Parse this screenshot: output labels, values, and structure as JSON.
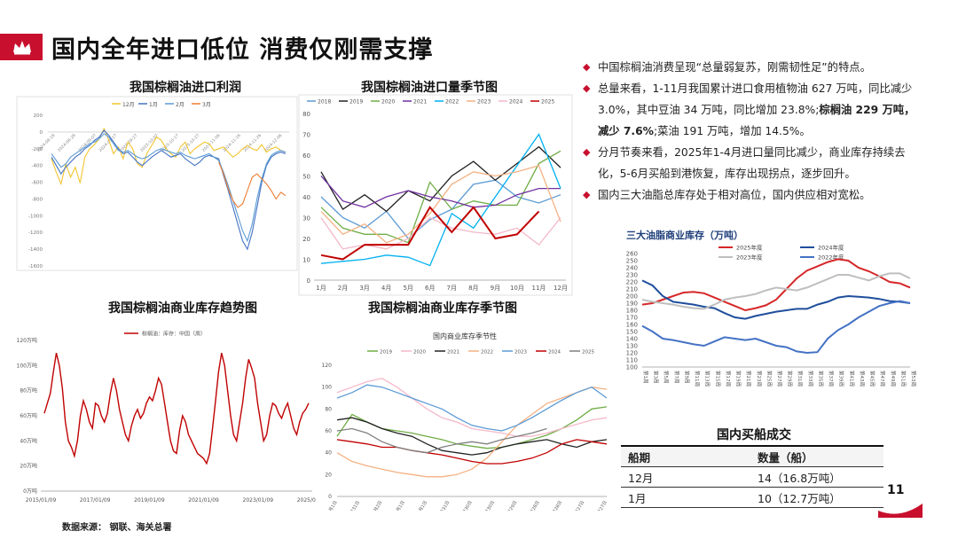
{
  "slide": {
    "title": "国内全年进口低位 消费仅刚需支撑",
    "page_number": "11",
    "source": "数据来源： 钢联、海关总署",
    "brand_color": "#c8102e"
  },
  "bullets": [
    {
      "text": "中国棕榈油消费呈现“总量弱复苏，刚需韧性足”的特点。"
    },
    {
      "text": "总量来看，1-11月我国累计进口食用植物油 627 万吨，同比减少 3.0%，其中豆油 34 万吨，同比增加 23.8%;",
      "bold": "棕榈油 229 万吨，减少 7.6%",
      "tail": ";菜油 191 万吨，增加 14.5%。"
    },
    {
      "text": "分月节奏来看，2025年1-4月进口量同比减少，商业库存持续去化，5-6月买船到港恢复，库存出现拐点，逐步回升。"
    },
    {
      "text": "国内三大油脂总库存处于相对高位，国内供应相对宽松。"
    }
  ],
  "ship_table": {
    "title": "国内买船成交",
    "headers": [
      "船期",
      "数量（船）"
    ],
    "rows": [
      [
        "12月",
        "14（16.8万吨）"
      ],
      [
        "1月",
        "10（12.7万吨）"
      ]
    ]
  },
  "chart_data": [
    {
      "type": "line",
      "title": "我国棕榈油进口利润",
      "legend": [
        "12月",
        "1月",
        "2月",
        "3月"
      ],
      "series_colors": [
        "#f2c530",
        "#4472c4",
        "#5b9bd5",
        "#ed7d31"
      ],
      "y_ticks": [
        "200",
        "0",
        "-200",
        "-400",
        "-600",
        "-800",
        "-1000",
        "-1200",
        "-1400",
        "-1600"
      ],
      "ylim": [
        -1600,
        200
      ],
      "x_labels": [
        "2024-08-18",
        "2024-08-28",
        "2024-09-07",
        "2024-09-17",
        "2024-09-27",
        "2025-10-07",
        "2025-10-17",
        "2025-10-27",
        "2024-11-06",
        "2024-11-16",
        "2024-11-26",
        "2024-12-06"
      ],
      "series": [
        {
          "name": "12月",
          "values": [
            -320,
            -480,
            -620,
            -380,
            -540,
            -420,
            -610,
            -300,
            -200,
            -150,
            -80,
            40,
            -100,
            -260,
            -180,
            -320,
            -120,
            -200,
            -380,
            -420,
            -250,
            -160,
            -60,
            -100,
            -200,
            -260,
            -300,
            -180,
            -120,
            -260,
            -200,
            -160,
            -120,
            -140,
            -220,
            -200,
            -180,
            -240,
            -300,
            -260,
            -200,
            -160,
            -200,
            -220,
            -150,
            -240,
            -200,
            -180,
            -220,
            -240
          ]
        },
        {
          "name": "1月",
          "values": [
            -300,
            -400,
            -500,
            -420,
            -360,
            -300,
            -260,
            -200,
            -160,
            -100,
            -60,
            20,
            -40,
            -120,
            -200,
            -260,
            -240,
            -300,
            -360,
            -400,
            -350,
            -300,
            -260,
            -220,
            -260,
            -300,
            -280,
            -260,
            -320,
            -360,
            -400,
            -360,
            -300,
            -280,
            -300,
            -320,
            -520,
            -700,
            -900,
            -1100,
            -1300,
            -1400,
            -1200,
            -900,
            -600,
            -400,
            -300,
            -260,
            -240,
            -260
          ]
        },
        {
          "name": "2月",
          "values": [
            -260,
            -340,
            -420,
            -380,
            -300,
            -260,
            -220,
            -180,
            -140,
            -120,
            -80,
            -20,
            -60,
            -140,
            -220,
            -240,
            -220,
            -260,
            -300,
            -320,
            -300,
            -260,
            -220,
            -200,
            -220,
            -240,
            -260,
            -240,
            -280,
            -300,
            -320,
            -300,
            -280,
            -260,
            -300,
            -340,
            -480,
            -640,
            -820,
            -1000,
            -1180,
            -1300,
            -1100,
            -800,
            -560,
            -380,
            -280,
            -240,
            -220,
            -240
          ]
        },
        {
          "name": "3月",
          "values": [
            null,
            null,
            null,
            null,
            null,
            null,
            null,
            null,
            null,
            null,
            null,
            null,
            null,
            null,
            null,
            null,
            null,
            null,
            null,
            null,
            null,
            null,
            null,
            null,
            null,
            null,
            null,
            null,
            null,
            null,
            null,
            null,
            null,
            null,
            null,
            -360,
            -500,
            -680,
            -820,
            -900,
            -860,
            -700,
            -540,
            -500,
            -560,
            -620,
            -700,
            -800,
            -720,
            -760
          ]
        }
      ]
    },
    {
      "type": "line",
      "title": "我国棕榈油进口量季节图",
      "categories": [
        "1月",
        "2月",
        "3月",
        "4月",
        "5月",
        "6月",
        "7月",
        "8月",
        "9月",
        "10月",
        "11月",
        "12月"
      ],
      "ylim": [
        0,
        80
      ],
      "y_ticks": [
        0,
        10,
        20,
        30,
        40,
        50,
        60,
        70,
        80
      ],
      "series": [
        {
          "name": "2018",
          "color": "#5b9bd5",
          "values": [
            40,
            30,
            25,
            33,
            20,
            29,
            34,
            46,
            48,
            40,
            37,
            41
          ]
        },
        {
          "name": "2019",
          "color": "#222222",
          "values": [
            52,
            34,
            41,
            33,
            43,
            38,
            50,
            57,
            48,
            56,
            64,
            54
          ]
        },
        {
          "name": "2020",
          "color": "#70ad47",
          "values": [
            35,
            25,
            22,
            22,
            18,
            47,
            34,
            38,
            36,
            36,
            56,
            62
          ]
        },
        {
          "name": "2021",
          "color": "#7030a0",
          "values": [
            50,
            38,
            35,
            40,
            43,
            40,
            38,
            35,
            36,
            41,
            44,
            44
          ]
        },
        {
          "name": "2022",
          "color": "#00b0f0",
          "values": [
            8,
            9,
            10,
            12,
            11,
            7,
            32,
            25,
            40,
            55,
            70,
            44
          ]
        },
        {
          "name": "2023",
          "color": "#f4b183",
          "values": [
            33,
            22,
            27,
            18,
            22,
            32,
            46,
            52,
            50,
            52,
            55,
            28
          ]
        },
        {
          "name": "2024",
          "color": "#f4b9c8",
          "values": [
            30,
            15,
            17,
            15,
            20,
            30,
            25,
            23,
            22,
            25,
            17,
            30
          ]
        },
        {
          "name": "2025",
          "color": "#c00000",
          "values": [
            12,
            10,
            17,
            17,
            17,
            35,
            23,
            35,
            20,
            22,
            33,
            null
          ]
        }
      ]
    },
    {
      "type": "line",
      "title": "我国棕榈油商业库存趋势图",
      "legend": "棕榈油：库存：中国（周）",
      "y_ticks": [
        "0万吨",
        "20万吨",
        "40万吨",
        "60万吨",
        "80万吨",
        "100万吨",
        "120万吨"
      ],
      "ylim": [
        0,
        120
      ],
      "x_labels": [
        "2015/01/09",
        "2017/01/09",
        "2019/01/09",
        "2021/01/09",
        "2023/01/09",
        "2025/01/09"
      ],
      "values": [
        62,
        70,
        78,
        95,
        110,
        100,
        82,
        55,
        40,
        35,
        28,
        40,
        60,
        72,
        65,
        55,
        50,
        70,
        68,
        60,
        55,
        62,
        78,
        90,
        80,
        65,
        55,
        45,
        40,
        52,
        60,
        65,
        58,
        62,
        70,
        75,
        72,
        80,
        90,
        85,
        70,
        55,
        40,
        32,
        30,
        48,
        60,
        55,
        45,
        40,
        35,
        30,
        28,
        26,
        22,
        30,
        50,
        72,
        95,
        110,
        100,
        80,
        60,
        45,
        40,
        55,
        70,
        90,
        105,
        98,
        90,
        70,
        55,
        40,
        45,
        60,
        70,
        68,
        62,
        58,
        65,
        70,
        60,
        50,
        45,
        55,
        62,
        65,
        70
      ]
    },
    {
      "type": "line",
      "title": "我国棕榈油商业库存季节图",
      "subtitle": "国内商业库存季节性",
      "ylim": [
        0,
        120
      ],
      "y_ticks": [
        0,
        20,
        40,
        60,
        80,
        100,
        120
      ],
      "x_labels": [
        "1月1日",
        "1月31日",
        "3月2日",
        "4月1日",
        "5月1日",
        "5月31日",
        "6月30日",
        "7月30日",
        "8月29日",
        "9月28日",
        "10月28日",
        "11月27日",
        "12月27日"
      ],
      "series": [
        {
          "name": "2019",
          "color": "#70ad47",
          "values": [
            55,
            75,
            68,
            62,
            60,
            58,
            55,
            52,
            48,
            46,
            44,
            45,
            48,
            52,
            56,
            62,
            70,
            80,
            82
          ]
        },
        {
          "name": "2020",
          "color": "#f4b9c8",
          "values": [
            95,
            100,
            105,
            108,
            100,
            90,
            80,
            72,
            68,
            62,
            60,
            58,
            55,
            55,
            58,
            62,
            66,
            70,
            72
          ]
        },
        {
          "name": "2021",
          "color": "#222222",
          "values": [
            70,
            72,
            68,
            62,
            58,
            55,
            48,
            42,
            40,
            38,
            40,
            45,
            48,
            50,
            52,
            48,
            45,
            50,
            52
          ]
        },
        {
          "name": "2022",
          "color": "#f4b183",
          "values": [
            40,
            32,
            28,
            25,
            22,
            20,
            18,
            18,
            20,
            25,
            35,
            50,
            65,
            75,
            85,
            90,
            95,
            100,
            98
          ]
        },
        {
          "name": "2023",
          "color": "#5b9bd5",
          "values": [
            90,
            95,
            102,
            100,
            95,
            90,
            85,
            80,
            72,
            65,
            62,
            60,
            65,
            72,
            80,
            88,
            95,
            100,
            90
          ]
        },
        {
          "name": "2024",
          "color": "#c00000",
          "values": [
            52,
            50,
            48,
            45,
            45,
            42,
            40,
            38,
            35,
            32,
            30,
            30,
            32,
            35,
            40,
            48,
            52,
            50,
            48
          ]
        },
        {
          "name": "2025",
          "color": "#7f7f7f",
          "values": [
            60,
            62,
            58,
            50,
            45,
            42,
            40,
            45,
            48,
            50,
            48,
            52,
            55,
            58,
            62,
            null,
            null,
            null,
            null
          ]
        }
      ]
    },
    {
      "type": "line",
      "title": "三大油脂商业库存（万吨）",
      "ylim": [
        100,
        260
      ],
      "y_ticks": [
        100,
        110,
        120,
        130,
        140,
        150,
        160,
        170,
        180,
        190,
        200,
        210,
        220,
        230,
        240,
        250,
        260
      ],
      "x_labels": [
        "第1周",
        "第3周",
        "第5周",
        "第7周",
        "第9周",
        "第11周",
        "第13周",
        "第15周",
        "第17周",
        "第19周",
        "第21周",
        "第23周",
        "第25周",
        "第27周",
        "第29周",
        "第31周",
        "第33周",
        "第35周",
        "第37周",
        "第39周",
        "第41周",
        "第43周",
        "第45周",
        "第47周",
        "第49周",
        "第51周",
        "第53周"
      ],
      "series": [
        {
          "name": "2025年度",
          "color": "#d62728",
          "values": [
            188,
            190,
            195,
            200,
            205,
            206,
            204,
            198,
            192,
            186,
            180,
            183,
            187,
            195,
            210,
            225,
            236,
            242,
            248,
            252,
            250,
            240,
            235,
            228,
            220,
            218,
            212
          ]
        },
        {
          "name": "2024年度",
          "color": "#1f4e9c",
          "values": [
            222,
            215,
            200,
            192,
            190,
            188,
            185,
            183,
            176,
            170,
            168,
            172,
            175,
            178,
            180,
            182,
            182,
            188,
            192,
            198,
            200,
            199,
            198,
            196,
            193,
            192,
            190
          ]
        },
        {
          "name": "2023年度",
          "color": "#bfbfbf",
          "values": [
            195,
            192,
            190,
            188,
            185,
            183,
            182,
            188,
            195,
            198,
            200,
            203,
            208,
            212,
            210,
            208,
            212,
            218,
            224,
            230,
            230,
            226,
            222,
            228,
            232,
            232,
            225
          ]
        },
        {
          "name": "2022年度",
          "color": "#4472c4",
          "values": [
            158,
            150,
            140,
            138,
            135,
            132,
            130,
            136,
            142,
            140,
            138,
            140,
            135,
            130,
            128,
            122,
            120,
            121,
            140,
            152,
            160,
            170,
            178,
            186,
            190,
            193,
            190
          ]
        }
      ]
    }
  ]
}
